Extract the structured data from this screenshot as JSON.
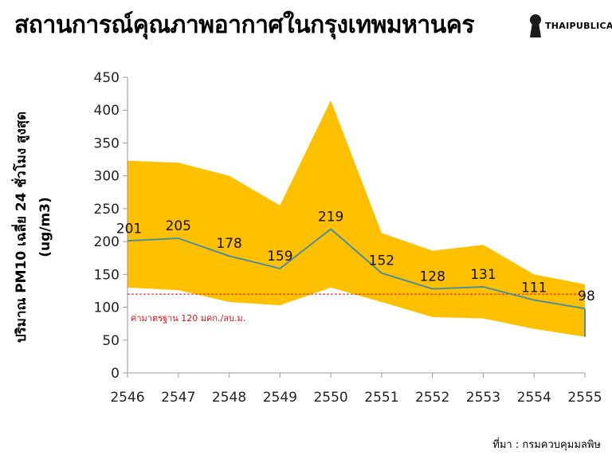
{
  "title": "สถานการณ์คุณภาพอากาศในกรุงเทพมหานคร",
  "logo": {
    "text": "THAIPUBLICA",
    "icon": "keyhole-icon"
  },
  "source": "ที่มา : กรมควบคุมมลพิษ",
  "colors": {
    "band": "#ffc000",
    "line": "#4a90a0",
    "standard": "#e01010"
  },
  "chart_data": {
    "type": "line",
    "title": "",
    "ylabel_line1": "ปริมาณ PM10 เฉลี่ย 24 ชั่วโมง สูงสุด",
    "ylabel_line2": "(ug/m3)",
    "xlabel": "",
    "ylim": [
      0,
      450
    ],
    "yticks": [
      0,
      50,
      100,
      150,
      200,
      250,
      300,
      350,
      400,
      450
    ],
    "categories": [
      "2546",
      "2547",
      "2548",
      "2549",
      "2550",
      "2551",
      "2552",
      "2553",
      "2554",
      "2555"
    ],
    "series": [
      {
        "values": [
          201,
          205,
          178,
          159,
          219,
          152,
          128,
          131,
          111,
          98
        ],
        "labels": [
          "201",
          "205",
          "178",
          "159",
          "219",
          "152",
          "128",
          "131",
          "111",
          "98"
        ]
      }
    ],
    "band": {
      "upper": [
        323,
        320,
        300,
        255,
        415,
        213,
        186,
        195,
        150,
        135
      ],
      "lower": [
        130,
        126,
        108,
        103,
        130,
        108,
        85,
        83,
        67,
        55
      ]
    },
    "standard": {
      "value": 120,
      "label": "ค่ามาตรฐาน 120 มคก./ลบ.ม."
    },
    "grid": false
  }
}
